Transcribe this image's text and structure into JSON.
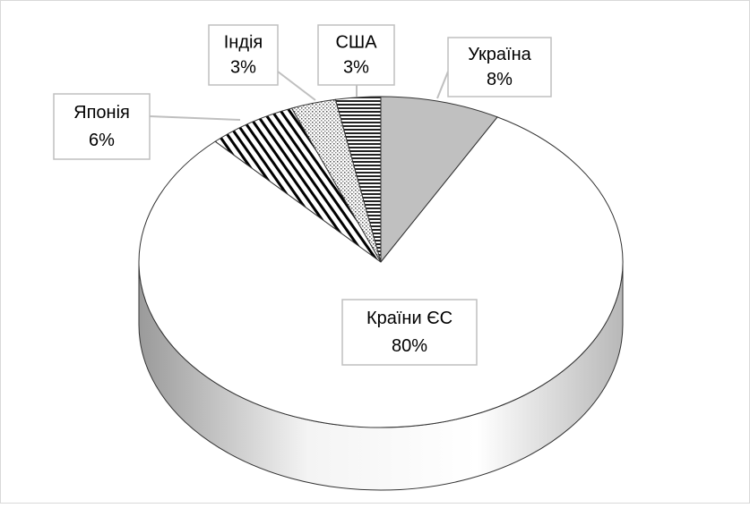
{
  "chart_data": {
    "type": "pie3d",
    "categories": [
      "Україна",
      "Країни ЄС",
      "Японія",
      "Індія",
      "США"
    ],
    "values": [
      8,
      80,
      6,
      3,
      3
    ],
    "value_labels": [
      "8%",
      "80%",
      "6%",
      "3%",
      "3%"
    ]
  }
}
